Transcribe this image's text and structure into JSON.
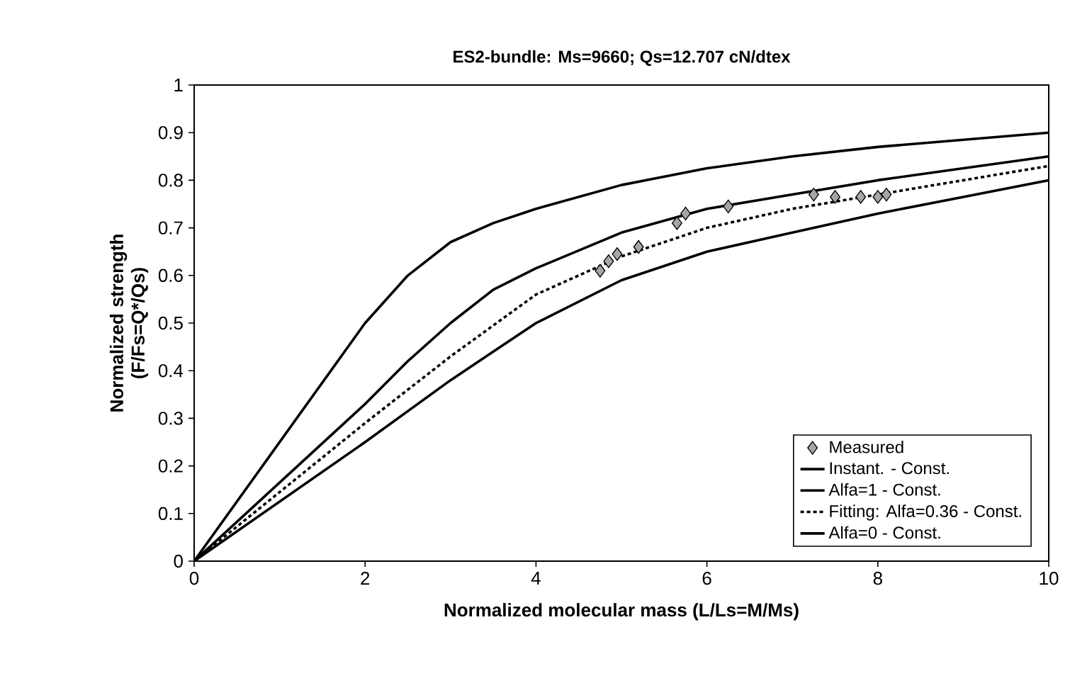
{
  "chart_data": {
    "type": "line",
    "title": "ES2-bundle: Ms=9660; Qs=12.707 cN/dtex",
    "xlabel": "Normalized molecular mass (L/Ls=M/Ms)",
    "ylabel": "Normalized strength (F/Fs=Q*/Qs)",
    "xlim": [
      0,
      10
    ],
    "ylim": [
      0,
      1
    ],
    "xticks": [
      0,
      2,
      4,
      6,
      8,
      10
    ],
    "yticks": [
      0,
      0.1,
      0.2,
      0.3,
      0.4,
      0.5,
      0.6,
      0.7,
      0.8,
      0.9,
      1
    ],
    "grid": false,
    "legend": "bottom right",
    "series": [
      {
        "name": "Measured",
        "type": "scatter",
        "marker": "diamond",
        "color": "#a6a6a6",
        "x": [
          4.75,
          4.85,
          4.95,
          5.2,
          5.65,
          5.75,
          6.25,
          7.25,
          7.5,
          7.8,
          8.0,
          8.1
        ],
        "values": [
          0.61,
          0.63,
          0.645,
          0.66,
          0.71,
          0.73,
          0.745,
          0.77,
          0.765,
          0.765,
          0.765,
          0.77
        ]
      },
      {
        "name": "Instant. - Const.",
        "line_style": "solid",
        "color": "#000000",
        "x": [
          0,
          2,
          2.5,
          3,
          3.5,
          4,
          5,
          6,
          7,
          8,
          10
        ],
        "values": [
          0,
          0.5,
          0.6,
          0.67,
          0.71,
          0.74,
          0.79,
          0.825,
          0.85,
          0.87,
          0.9
        ]
      },
      {
        "name": "Alfa=1 - Const.",
        "line_style": "solid",
        "color": "#000000",
        "x": [
          0,
          2,
          2.5,
          3,
          3.5,
          4,
          5,
          6,
          7,
          8,
          9,
          10
        ],
        "values": [
          0,
          0.33,
          0.42,
          0.5,
          0.57,
          0.615,
          0.69,
          0.74,
          0.77,
          0.8,
          0.825,
          0.85
        ]
      },
      {
        "name": "Fitting: Alfa=0.36 - Const.",
        "line_style": "dashed",
        "color": "#000000",
        "x": [
          0,
          2,
          3,
          4,
          5,
          6,
          7,
          8,
          9,
          10
        ],
        "values": [
          0,
          0.29,
          0.43,
          0.56,
          0.64,
          0.7,
          0.74,
          0.77,
          0.8,
          0.83
        ]
      },
      {
        "name": "Alfa=0 - Const.",
        "line_style": "solid",
        "color": "#000000",
        "x": [
          0,
          2,
          3,
          3.5,
          4,
          5,
          6,
          7,
          8,
          9,
          10
        ],
        "values": [
          0,
          0.25,
          0.38,
          0.44,
          0.5,
          0.59,
          0.65,
          0.69,
          0.73,
          0.765,
          0.8
        ]
      }
    ]
  }
}
